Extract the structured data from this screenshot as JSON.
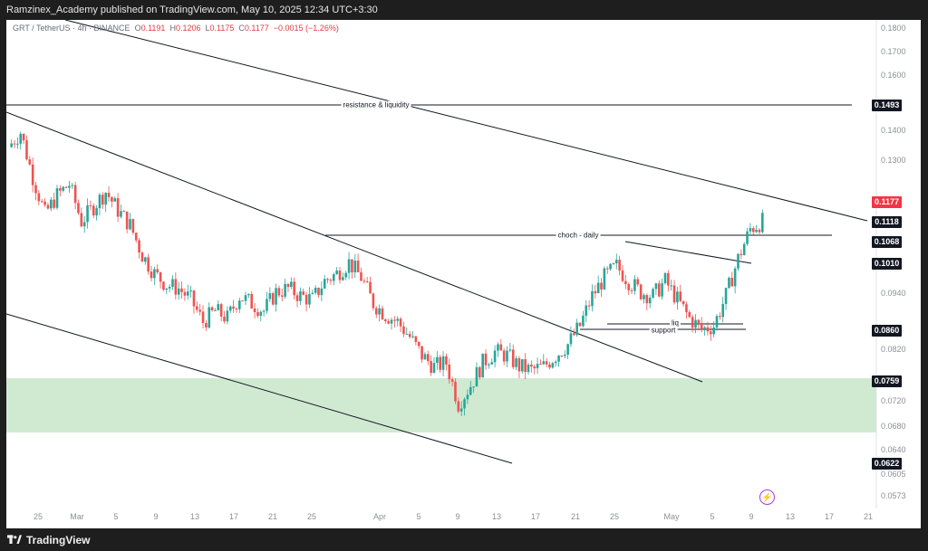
{
  "header": {
    "publisher_line": "Ramzinex_Academy published on TradingView.com, May 10, 2025 12:34 UTC+3:30"
  },
  "legend": {
    "symbol": "GRT / TetherUS · 4h · BINANCE",
    "open_label": "O",
    "open": "0.1191",
    "high_label": "H",
    "high": "0.1206",
    "low_label": "L",
    "low": "0.1175",
    "close_label": "C",
    "close": "0.1177",
    "change": "−0.0015 (−1.26%)"
  },
  "price_axis": {
    "ticks": [
      "0.1800",
      "0.1700",
      "0.1600",
      "0.1400",
      "0.1300",
      "0.0940",
      "0.0820",
      "0.0720",
      "0.0680",
      "0.0640",
      "0.0605",
      "0.0573"
    ],
    "boxes": [
      {
        "value": "0.1493",
        "style": "dark"
      },
      {
        "value": "0.1177",
        "style": "red"
      },
      {
        "value": "0.1118",
        "style": "dark"
      },
      {
        "value": "0.1068",
        "style": "dark"
      },
      {
        "value": "0.1010",
        "style": "dark"
      },
      {
        "value": "0.0860",
        "style": "dark"
      },
      {
        "value": "0.0759",
        "style": "dark"
      },
      {
        "value": "0.0622",
        "style": "dark"
      }
    ]
  },
  "time_axis": [
    "25",
    "Mar",
    "5",
    "9",
    "13",
    "17",
    "21",
    "25",
    "Apr",
    "5",
    "9",
    "13",
    "17",
    "21",
    "25",
    "May",
    "5",
    "9",
    "13",
    "17",
    "21"
  ],
  "annotations": {
    "resistance": "resistance & liquidity",
    "choch": "choch - daily",
    "liq": "liq",
    "support": "support"
  },
  "colors": {
    "up": "#26a69a",
    "down": "#ef5350",
    "zone": "#c8e6c9",
    "line": "#131722",
    "accent_red": "#f23645",
    "bolt": "#a23ce5"
  },
  "footer": {
    "brand": "TradingView",
    "brand_icon": "tradingview-logo-icon"
  },
  "chart_data": {
    "type": "candlestick",
    "symbol": "GRT / TetherUS",
    "interval": "4h",
    "last_price": 0.1177,
    "key_levels": [
      {
        "label": "resistance & liquidity",
        "price": 0.1493
      },
      {
        "label": "choch - daily",
        "price": 0.1068
      },
      {
        "label": "support",
        "price": 0.086
      },
      {
        "label": "liq",
        "price": 0.0871
      }
    ],
    "demand_zone": {
      "from": 0.068,
      "to": 0.0759
    },
    "approx_closes": [
      0.138,
      0.142,
      0.13,
      0.12,
      0.125,
      0.128,
      0.118,
      0.122,
      0.126,
      0.121,
      0.117,
      0.109,
      0.104,
      0.101,
      0.1,
      0.097,
      0.091,
      0.094,
      0.092,
      0.098,
      0.096,
      0.094,
      0.099,
      0.1,
      0.098,
      0.097,
      0.102,
      0.104,
      0.107,
      0.103,
      0.096,
      0.093,
      0.091,
      0.087,
      0.082,
      0.079,
      0.08,
      0.069,
      0.074,
      0.08,
      0.083,
      0.082,
      0.079,
      0.078,
      0.079,
      0.082,
      0.085,
      0.09,
      0.098,
      0.103,
      0.106,
      0.102,
      0.099,
      0.098,
      0.102,
      0.097,
      0.092,
      0.089,
      0.09,
      0.098,
      0.108,
      0.116,
      0.118
    ]
  }
}
